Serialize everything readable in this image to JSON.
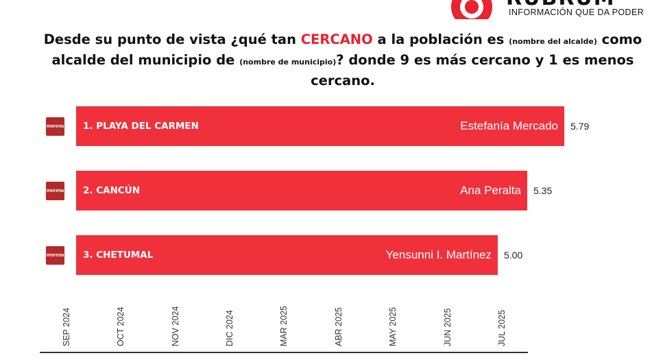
{
  "logo": {
    "wordmark": "RUBRUM",
    "tagline": "INFORMACIÓN QUE DA PODER"
  },
  "title": {
    "part1": "Desde su punto de vista ¿qué tan ",
    "highlight": "CERCANO",
    "part2": " a la población es ",
    "small1": "(nombre del alcalde)",
    "part3": " como alcalde del municipio de ",
    "small2": "(nombre de municipio)",
    "part4": "? donde 9 es más cercano y 1 es menos cercano."
  },
  "party_logo_text": "morena",
  "chart_data": {
    "type": "bar",
    "orientation": "horizontal",
    "categories": [
      "1. PLAYA DEL CARMEN",
      "2. CANCÚN",
      "3. CHETUMAL"
    ],
    "names": [
      "Estefanía Mercado",
      "Ana Peralta",
      "Yensunni I. Martínez"
    ],
    "values": [
      5.79,
      5.35,
      5.0
    ],
    "value_labels": [
      "5.79",
      "5.35",
      "5.00"
    ],
    "bar_color": "#f0313c",
    "x_ticks": [
      "SEP 2024",
      "OCT 2024",
      "NOV 2024",
      "DIC 2024",
      "MAR 2025",
      "ABR 2025",
      "MAY 2025",
      "JUN 2025",
      "JUL 2025"
    ]
  }
}
